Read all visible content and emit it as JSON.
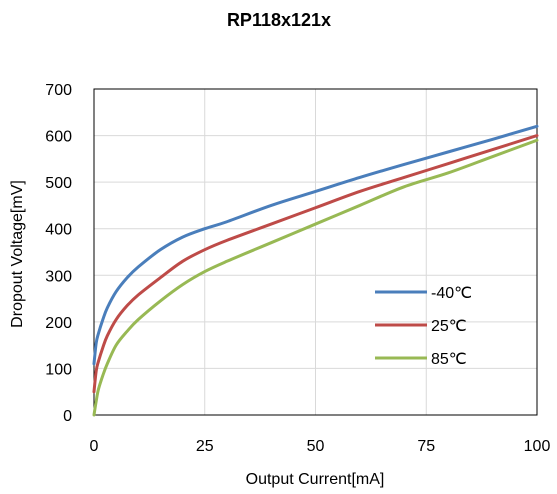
{
  "chart_data": {
    "type": "line",
    "title": "RP118x121x",
    "xlabel": "Output Current[mA]",
    "ylabel": "Dropout Voltage[mV]",
    "xlim": [
      0,
      100
    ],
    "ylim": [
      0,
      700
    ],
    "xticks": [
      0,
      25,
      50,
      75,
      100
    ],
    "yticks": [
      0,
      100,
      200,
      300,
      400,
      500,
      600,
      700
    ],
    "grid": true,
    "legend_position": "right",
    "series": [
      {
        "name": "-40℃",
        "color": "#4a7ebb",
        "x": [
          0,
          0.5,
          1,
          2,
          3,
          5,
          7.5,
          10,
          15,
          20,
          25,
          30,
          40,
          50,
          60,
          70,
          80,
          90,
          100
        ],
        "y": [
          110,
          155,
          175,
          205,
          230,
          265,
          295,
          318,
          355,
          382,
          400,
          415,
          450,
          480,
          510,
          538,
          565,
          592,
          620
        ]
      },
      {
        "name": "25℃",
        "color": "#be4b48",
        "x": [
          0,
          0.5,
          1,
          2,
          3,
          5,
          7.5,
          10,
          15,
          20,
          25,
          30,
          40,
          50,
          60,
          70,
          80,
          90,
          100
        ],
        "y": [
          50,
          95,
          115,
          145,
          170,
          205,
          235,
          258,
          295,
          330,
          355,
          375,
          410,
          445,
          480,
          510,
          540,
          570,
          600
        ]
      },
      {
        "name": "85℃",
        "color": "#98b954",
        "x": [
          0,
          0.5,
          1,
          2,
          3,
          5,
          7.5,
          10,
          15,
          20,
          25,
          30,
          40,
          50,
          60,
          70,
          80,
          90,
          100
        ],
        "y": [
          0,
          30,
          55,
          85,
          110,
          150,
          180,
          205,
          245,
          280,
          308,
          330,
          370,
          410,
          450,
          490,
          520,
          555,
          590
        ]
      }
    ]
  }
}
